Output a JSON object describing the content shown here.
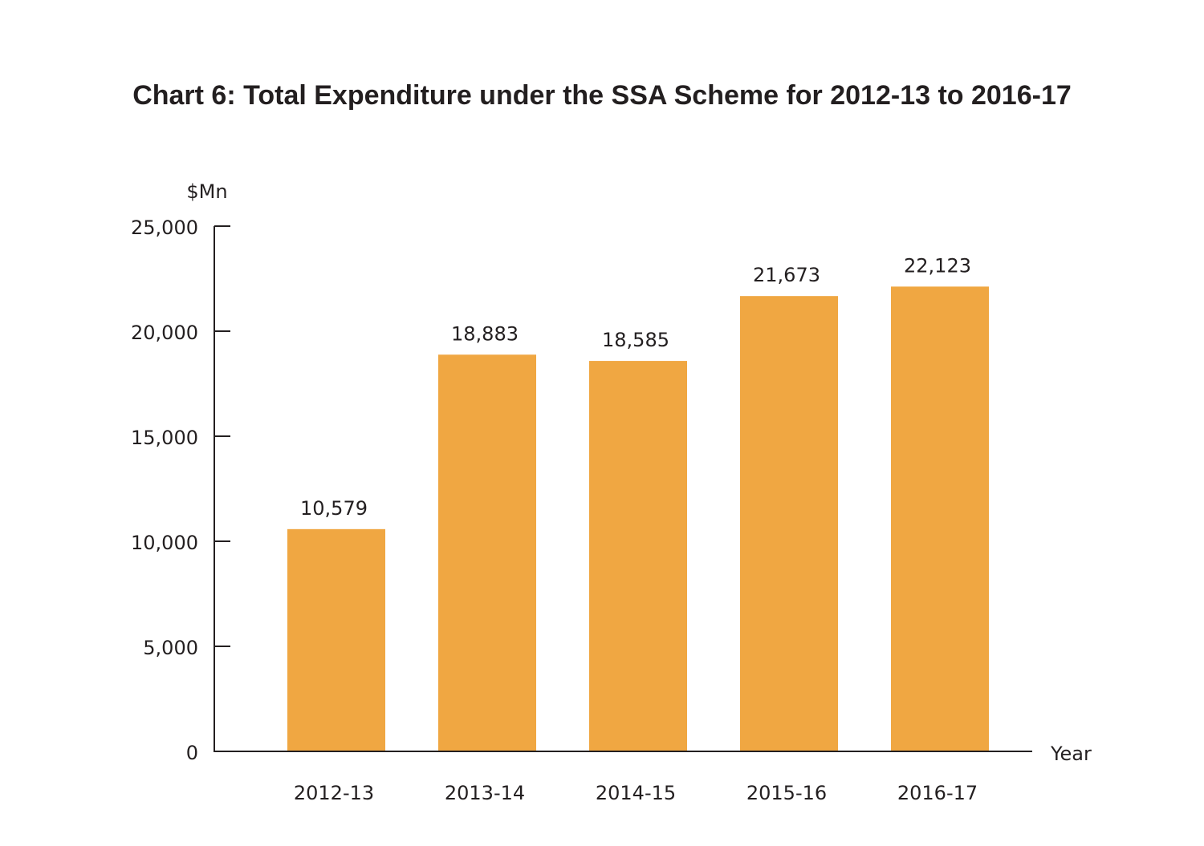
{
  "chart_data": {
    "type": "bar",
    "title": "Chart 6: Total Expenditure under the SSA Scheme for 2012-13 to 2016-17",
    "ylabel": "$Mn",
    "xlabel": "Year",
    "categories": [
      "2012-13",
      "2013-14",
      "2014-15",
      "2015-16",
      "2016-17"
    ],
    "values": [
      10579,
      18883,
      18585,
      21673,
      22123
    ],
    "data_labels": [
      "10,579",
      "18,883",
      "18,585",
      "21,673",
      "22,123"
    ],
    "ylim": [
      0,
      25000
    ],
    "yticks": [
      0,
      5000,
      10000,
      15000,
      20000,
      25000
    ],
    "ytick_labels": [
      "0",
      "5,000",
      "10,000",
      "15,000",
      "20,000",
      "25,000"
    ],
    "grid": false,
    "legend": "none",
    "bar_color": "#f0a742",
    "text_color": "#231f20"
  }
}
